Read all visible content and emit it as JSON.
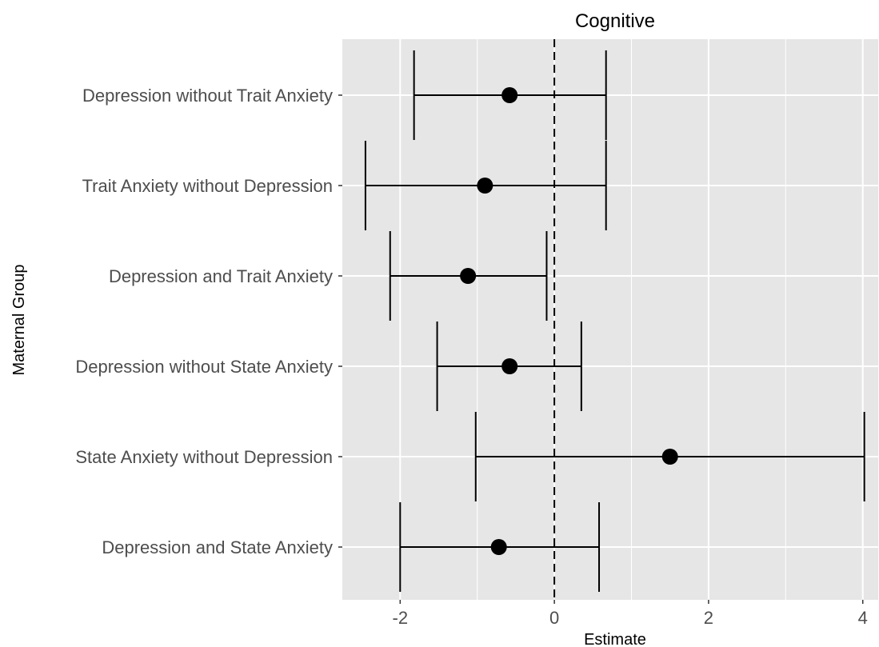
{
  "chart_data": {
    "type": "forest",
    "title": "Cognitive",
    "xlabel": "Estimate",
    "ylabel": "Maternal Group",
    "xlim": [
      -2.75,
      4.2
    ],
    "x_ticks": [
      -2,
      0,
      2,
      4
    ],
    "x_tick_labels": [
      "-2",
      "0",
      "2",
      "4"
    ],
    "reference_line": 0,
    "reference_line_style": "dashed",
    "grid": true,
    "categories": [
      "Depression without Trait Anxiety",
      "Trait Anxiety without Depression",
      "Depression and Trait Anxiety",
      "Depression without State Anxiety",
      "State Anxiety without Depression",
      "Depression and State Anxiety"
    ],
    "estimates": [
      -0.58,
      -0.9,
      -1.12,
      -0.58,
      1.5,
      -0.72
    ],
    "lower": [
      -1.82,
      -2.45,
      -2.13,
      -1.52,
      -1.02,
      -2.0
    ],
    "upper": [
      0.67,
      0.67,
      -0.1,
      0.35,
      4.02,
      0.58
    ]
  },
  "colors": {
    "panel_background": "#e6e6e6",
    "grid": "#ffffff",
    "marks": "#000000",
    "tick_label": "#4d4d4d"
  }
}
